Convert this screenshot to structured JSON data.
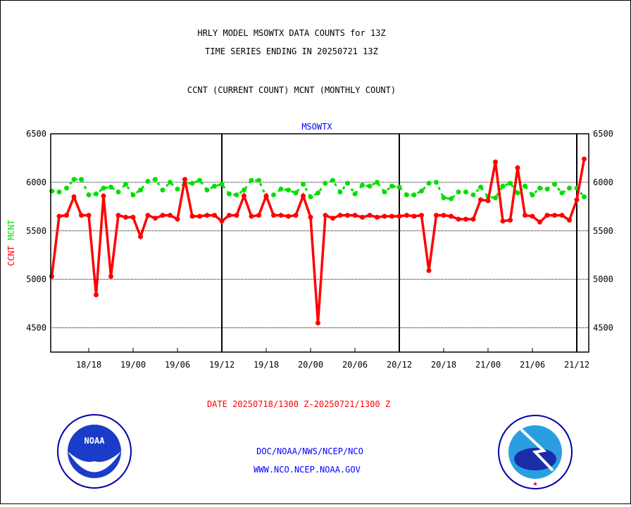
{
  "chart_data": {
    "type": "line",
    "title": [
      "HRLY MODEL MSOWTX DATA COUNTS for 13Z",
      "TIME SERIES ENDING IN 20250721 13Z"
    ],
    "subtitle": "CCNT (CURRENT COUNT) MCNT (MONTHLY COUNT)",
    "plot_label": "MSOWTX",
    "ylabel_ccnt": "CCNT",
    "ylabel_mcnt": "MCNT",
    "xlabel": "DATE 20250718/1300 Z-20250721/1300 Z",
    "ylim": [
      4250,
      6500
    ],
    "yticks": [
      4500,
      5000,
      5500,
      6000,
      6500
    ],
    "xticks": [
      {
        "hour": 5,
        "label": "18/18"
      },
      {
        "hour": 11,
        "label": "19/00"
      },
      {
        "hour": 17,
        "label": "19/06"
      },
      {
        "hour": 23,
        "label": "19/12"
      },
      {
        "hour": 29,
        "label": "19/18"
      },
      {
        "hour": 35,
        "label": "20/00"
      },
      {
        "hour": 41,
        "label": "20/06"
      },
      {
        "hour": 47,
        "label": "20/12"
      },
      {
        "hour": 53,
        "label": "20/18"
      },
      {
        "hour": 59,
        "label": "21/00"
      },
      {
        "hour": 65,
        "label": "21/06"
      },
      {
        "hour": 71,
        "label": "21/12"
      }
    ],
    "vlines": [
      23,
      47,
      71
    ],
    "series": [
      {
        "name": "CCNT",
        "color": "#ff0000",
        "style": "solid",
        "values": [
          5030,
          5650,
          5660,
          5850,
          5660,
          5660,
          4840,
          5860,
          5030,
          5660,
          5640,
          5640,
          5440,
          5660,
          5630,
          5660,
          5660,
          5620,
          6030,
          5650,
          5650,
          5660,
          5660,
          5600,
          5660,
          5660,
          5860,
          5650,
          5660,
          5860,
          5660,
          5660,
          5650,
          5660,
          5860,
          5640,
          4550,
          5660,
          5630,
          5660,
          5660,
          5660,
          5640,
          5660,
          5640,
          5650,
          5650,
          5650,
          5660,
          5650,
          5660,
          5090,
          5660,
          5660,
          5650,
          5620,
          5620,
          5620,
          5820,
          5810,
          6210,
          5600,
          5610,
          6150,
          5660,
          5650,
          5590,
          5660,
          5660,
          5660,
          5610,
          5820,
          6240
        ]
      },
      {
        "name": "MCNT",
        "color": "#00e000",
        "style": "dotted",
        "values": [
          5910,
          5900,
          5940,
          6030,
          6030,
          5870,
          5880,
          5940,
          5950,
          5900,
          5980,
          5870,
          5920,
          6010,
          6030,
          5920,
          6000,
          5930,
          5990,
          5990,
          6020,
          5920,
          5960,
          5980,
          5880,
          5870,
          5920,
          6020,
          6020,
          5850,
          5870,
          5930,
          5920,
          5890,
          5980,
          5850,
          5890,
          5990,
          6020,
          5900,
          5990,
          5880,
          5970,
          5960,
          6000,
          5900,
          5960,
          5950,
          5870,
          5870,
          5910,
          5990,
          6000,
          5840,
          5830,
          5900,
          5900,
          5870,
          5950,
          5850,
          5840,
          5960,
          5990,
          5890,
          5960,
          5870,
          5940,
          5930,
          5980,
          5890,
          5940,
          5940,
          5850
        ]
      }
    ]
  },
  "footer": {
    "line1": "DOC/NOAA/NWS/NCEP/NCO",
    "line2": "WWW.NCO.NCEP.NOAA.GOV",
    "noaa_logo": "NOAA",
    "nws_logo": "NATIONAL WEATHER SERVICE"
  }
}
